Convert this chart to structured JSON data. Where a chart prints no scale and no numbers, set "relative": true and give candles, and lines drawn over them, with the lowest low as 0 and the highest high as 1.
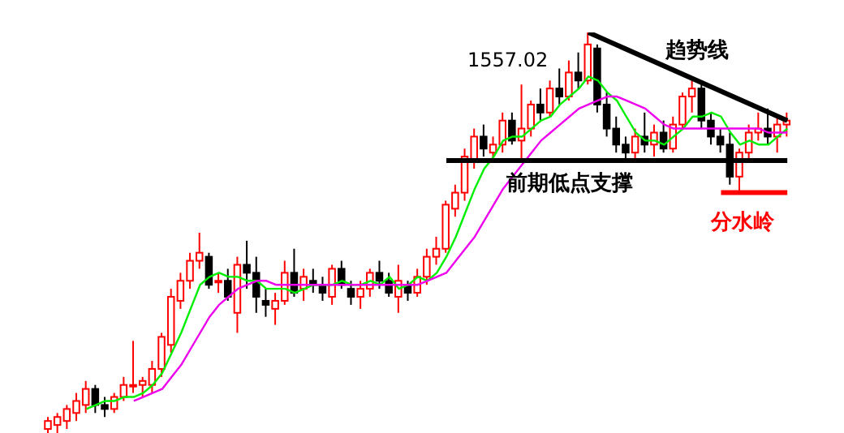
{
  "chart_data": {
    "type": "candlestick",
    "relative": true,
    "categories": [
      null,
      null,
      null,
      null,
      null,
      null,
      null,
      null,
      null,
      null,
      null,
      null,
      null,
      null,
      null,
      null,
      null,
      null,
      null,
      null,
      null,
      null,
      null,
      null,
      null,
      null,
      null,
      null,
      null,
      null,
      null,
      null,
      null,
      null,
      null,
      null,
      null,
      null,
      null,
      null,
      null,
      null,
      null,
      null,
      null,
      null,
      null,
      null,
      null,
      null,
      null,
      null,
      null,
      null,
      null,
      null,
      null,
      null,
      null,
      null,
      null,
      null,
      null,
      null,
      null,
      null,
      null,
      null,
      null,
      null,
      null,
      null,
      null,
      null,
      null,
      null,
      null,
      null,
      null
    ],
    "ohlc": [
      [
        0.01,
        0.04,
        0.0,
        0.03
      ],
      [
        0.02,
        0.05,
        0.0,
        0.04
      ],
      [
        0.03,
        0.07,
        0.01,
        0.06
      ],
      [
        0.05,
        0.1,
        0.03,
        0.08
      ],
      [
        0.07,
        0.13,
        0.05,
        0.11
      ],
      [
        0.11,
        0.12,
        0.05,
        0.07
      ],
      [
        0.07,
        0.09,
        0.04,
        0.06
      ],
      [
        0.06,
        0.1,
        0.05,
        0.09
      ],
      [
        0.09,
        0.14,
        0.08,
        0.12
      ],
      [
        0.12,
        0.23,
        0.1,
        0.12
      ],
      [
        0.12,
        0.14,
        0.09,
        0.13
      ],
      [
        0.12,
        0.18,
        0.1,
        0.16
      ],
      [
        0.16,
        0.25,
        0.14,
        0.24
      ],
      [
        0.22,
        0.36,
        0.2,
        0.34
      ],
      [
        0.33,
        0.4,
        0.31,
        0.38
      ],
      [
        0.38,
        0.45,
        0.36,
        0.43
      ],
      [
        0.43,
        0.5,
        0.41,
        0.45
      ],
      [
        0.44,
        0.45,
        0.36,
        0.37
      ],
      [
        0.38,
        0.4,
        0.35,
        0.38
      ],
      [
        0.38,
        0.41,
        0.33,
        0.34
      ],
      [
        0.3,
        0.44,
        0.25,
        0.42
      ],
      [
        0.42,
        0.48,
        0.36,
        0.4
      ],
      [
        0.4,
        0.44,
        0.3,
        0.34
      ],
      [
        0.33,
        0.36,
        0.29,
        0.32
      ],
      [
        0.31,
        0.35,
        0.27,
        0.33
      ],
      [
        0.33,
        0.43,
        0.32,
        0.4
      ],
      [
        0.4,
        0.46,
        0.34,
        0.35
      ],
      [
        0.36,
        0.41,
        0.33,
        0.39
      ],
      [
        0.38,
        0.41,
        0.35,
        0.37
      ],
      [
        0.37,
        0.39,
        0.33,
        0.35
      ],
      [
        0.34,
        0.42,
        0.32,
        0.41
      ],
      [
        0.41,
        0.43,
        0.36,
        0.37
      ],
      [
        0.36,
        0.38,
        0.32,
        0.34
      ],
      [
        0.34,
        0.38,
        0.31,
        0.36
      ],
      [
        0.36,
        0.41,
        0.34,
        0.4
      ],
      [
        0.4,
        0.43,
        0.36,
        0.38
      ],
      [
        0.38,
        0.4,
        0.34,
        0.35
      ],
      [
        0.34,
        0.42,
        0.3,
        0.38
      ],
      [
        0.37,
        0.38,
        0.33,
        0.35
      ],
      [
        0.35,
        0.41,
        0.34,
        0.39
      ],
      [
        0.39,
        0.46,
        0.37,
        0.44
      ],
      [
        0.44,
        0.49,
        0.42,
        0.46
      ],
      [
        0.46,
        0.58,
        0.45,
        0.57
      ],
      [
        0.56,
        0.62,
        0.54,
        0.6
      ],
      [
        0.6,
        0.71,
        0.58,
        0.69
      ],
      [
        0.68,
        0.76,
        0.66,
        0.74
      ],
      [
        0.74,
        0.77,
        0.69,
        0.71
      ],
      [
        0.7,
        0.74,
        0.68,
        0.72
      ],
      [
        0.72,
        0.8,
        0.7,
        0.78
      ],
      [
        0.78,
        0.8,
        0.72,
        0.73
      ],
      [
        0.73,
        0.87,
        0.68,
        0.76
      ],
      [
        0.76,
        0.83,
        0.74,
        0.82
      ],
      [
        0.82,
        0.86,
        0.78,
        0.8
      ],
      [
        0.8,
        0.88,
        0.79,
        0.86
      ],
      [
        0.86,
        0.91,
        0.82,
        0.84
      ],
      [
        0.84,
        0.93,
        0.83,
        0.9
      ],
      [
        0.9,
        0.95,
        0.86,
        0.88
      ],
      [
        0.88,
        1.0,
        0.87,
        0.97
      ],
      [
        0.96,
        0.97,
        0.8,
        0.82
      ],
      [
        0.82,
        0.85,
        0.74,
        0.76
      ],
      [
        0.76,
        0.79,
        0.7,
        0.72
      ],
      [
        0.72,
        0.74,
        0.68,
        0.7
      ],
      [
        0.7,
        0.76,
        0.68,
        0.74
      ],
      [
        0.74,
        0.8,
        0.7,
        0.72
      ],
      [
        0.72,
        0.77,
        0.69,
        0.75
      ],
      [
        0.75,
        0.78,
        0.7,
        0.71
      ],
      [
        0.71,
        0.79,
        0.7,
        0.77
      ],
      [
        0.77,
        0.85,
        0.76,
        0.84
      ],
      [
        0.84,
        0.89,
        0.8,
        0.86
      ],
      [
        0.86,
        0.87,
        0.76,
        0.78
      ],
      [
        0.78,
        0.8,
        0.72,
        0.74
      ],
      [
        0.74,
        0.76,
        0.7,
        0.72
      ],
      [
        0.72,
        0.75,
        0.62,
        0.64
      ],
      [
        0.64,
        0.71,
        0.6,
        0.7
      ],
      [
        0.7,
        0.77,
        0.68,
        0.75
      ],
      [
        0.75,
        0.8,
        0.73,
        0.76
      ],
      [
        0.76,
        0.81,
        0.72,
        0.74
      ],
      [
        0.74,
        0.79,
        0.7,
        0.77
      ],
      [
        0.77,
        0.8,
        0.74,
        0.78
      ]
    ],
    "series": [
      {
        "type": "line",
        "color": "#00ee00",
        "values": [
          null,
          null,
          null,
          null,
          0.06,
          0.07,
          0.08,
          0.08,
          0.09,
          0.09,
          0.1,
          0.12,
          0.15,
          0.2,
          0.25,
          0.31,
          0.37,
          0.39,
          0.4,
          0.39,
          0.39,
          0.38,
          0.38,
          0.36,
          0.36,
          0.36,
          0.35,
          0.36,
          0.37,
          0.37,
          0.37,
          0.38,
          0.37,
          0.37,
          0.38,
          0.37,
          0.39,
          0.36,
          0.37,
          0.39,
          0.38,
          0.4,
          0.44,
          0.49,
          0.55,
          0.61,
          0.66,
          0.69,
          0.73,
          0.74,
          0.74,
          0.76,
          0.78,
          0.79,
          0.82,
          0.84,
          0.86,
          0.89,
          0.88,
          0.85,
          0.83,
          0.79,
          0.75,
          0.73,
          0.73,
          0.72,
          0.74,
          0.76,
          0.79,
          0.79,
          0.8,
          0.79,
          0.75,
          0.72,
          0.73,
          0.72,
          0.72,
          0.74,
          0.76
        ]
      },
      {
        "type": "line",
        "color": "#ee00ee",
        "values": [
          null,
          null,
          null,
          null,
          null,
          null,
          null,
          null,
          null,
          0.08,
          0.09,
          0.1,
          0.11,
          0.14,
          0.17,
          0.21,
          0.25,
          0.29,
          0.32,
          0.34,
          0.36,
          0.37,
          0.38,
          0.38,
          0.37,
          0.37,
          0.37,
          0.37,
          0.37,
          0.37,
          0.37,
          0.37,
          0.37,
          0.37,
          0.37,
          0.37,
          0.37,
          0.37,
          0.37,
          0.37,
          0.38,
          0.39,
          0.4,
          0.43,
          0.46,
          0.49,
          0.53,
          0.57,
          0.61,
          0.64,
          0.67,
          0.7,
          0.73,
          0.75,
          0.77,
          0.79,
          0.81,
          0.82,
          0.83,
          0.84,
          0.84,
          0.83,
          0.82,
          0.81,
          0.79,
          0.77,
          0.76,
          0.76,
          0.76,
          0.76,
          0.76,
          0.76,
          0.76,
          0.76,
          0.76,
          0.76,
          0.75,
          0.75,
          0.75
        ]
      },
      {
        "type": "line",
        "color": "#000000",
        "values": [
          null,
          null,
          null,
          null,
          null,
          null,
          null,
          null,
          null,
          null,
          null,
          null,
          null,
          null,
          null,
          null,
          null,
          null,
          null,
          null,
          null,
          null,
          null,
          null,
          null,
          null,
          null,
          null,
          null,
          null,
          null,
          null,
          null,
          null,
          null,
          null,
          null,
          null,
          null,
          null,
          null,
          null,
          null,
          null,
          null,
          null,
          null,
          null,
          null,
          null,
          null,
          null,
          null,
          null,
          null,
          null,
          null,
          1.0,
          null,
          null,
          null,
          null,
          null,
          null,
          null,
          null,
          null,
          null,
          null,
          null,
          null,
          null,
          null,
          null,
          null,
          null,
          null,
          null,
          0.78
        ]
      },
      {
        "type": "line",
        "color": "#000000",
        "values": [
          null,
          null,
          null,
          null,
          null,
          null,
          null,
          null,
          null,
          null,
          null,
          null,
          null,
          null,
          null,
          null,
          null,
          null,
          null,
          null,
          null,
          null,
          null,
          null,
          null,
          null,
          null,
          null,
          null,
          null,
          null,
          null,
          null,
          null,
          null,
          null,
          null,
          null,
          null,
          null,
          null,
          null,
          0.68,
          null,
          null,
          null,
          null,
          null,
          null,
          null,
          null,
          null,
          null,
          null,
          null,
          null,
          null,
          null,
          null,
          null,
          null,
          null,
          null,
          null,
          null,
          null,
          null,
          null,
          null,
          null,
          null,
          null,
          null,
          null,
          null,
          null,
          null,
          null,
          0.68
        ]
      },
      {
        "type": "line",
        "color": "#ff0000",
        "values": [
          null,
          null,
          null,
          null,
          null,
          null,
          null,
          null,
          null,
          null,
          null,
          null,
          null,
          null,
          null,
          null,
          null,
          null,
          null,
          null,
          null,
          null,
          null,
          null,
          null,
          null,
          null,
          null,
          null,
          null,
          null,
          null,
          null,
          null,
          null,
          null,
          null,
          null,
          null,
          null,
          null,
          null,
          null,
          null,
          null,
          null,
          null,
          null,
          null,
          null,
          null,
          null,
          null,
          null,
          null,
          null,
          null,
          null,
          null,
          null,
          null,
          null,
          null,
          null,
          null,
          null,
          null,
          null,
          null,
          null,
          null,
          0.6,
          null,
          null,
          null,
          null,
          null,
          null,
          0.6
        ]
      }
    ],
    "annotations": [
      "1557.02",
      "趋势线",
      "前期低点支撑",
      "分水岭"
    ]
  }
}
